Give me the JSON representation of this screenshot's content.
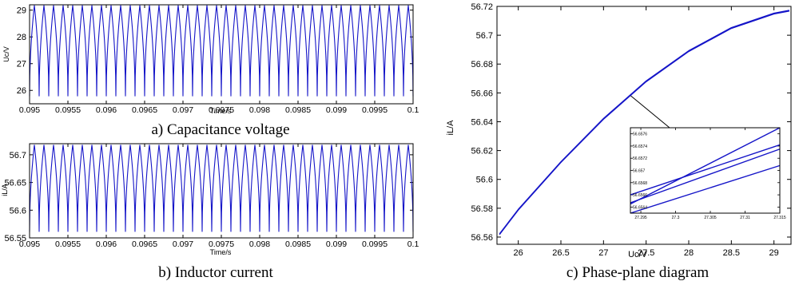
{
  "chart_data": [
    {
      "type": "line",
      "caption": "a) Capacitance voltage",
      "xlabel": "Time/s",
      "ylabel": "Uc/V",
      "xlim": [
        0.095,
        0.1
      ],
      "ylim": [
        25.5,
        29.2
      ],
      "xticks": [
        0.095,
        0.0955,
        0.096,
        0.0965,
        0.097,
        0.0975,
        0.098,
        0.0985,
        0.099,
        0.0995,
        0.1
      ],
      "xtick_labels": [
        "0.095",
        "0.0955",
        "0.096",
        "0.0965",
        "0.097",
        "0.0975",
        "0.098",
        "0.0985",
        "0.099",
        "0.0995",
        "0.1"
      ],
      "yticks": [
        26,
        27,
        28,
        29
      ],
      "ytick_labels": [
        "26",
        "27",
        "28",
        "29"
      ],
      "series": [
        {
          "color": "#1515c8",
          "waveform": "periodic",
          "periods": 40,
          "min": 25.78,
          "max": 29.18,
          "shape": "inverted-cusp"
        }
      ],
      "grid": false
    },
    {
      "type": "line",
      "caption": "b) Inductor current",
      "xlabel": "Time/s",
      "ylabel": "iL/A",
      "xlim": [
        0.095,
        0.1
      ],
      "ylim": [
        56.55,
        56.72
      ],
      "xticks": [
        0.095,
        0.0955,
        0.096,
        0.0965,
        0.097,
        0.0975,
        0.098,
        0.0985,
        0.099,
        0.0995,
        0.1
      ],
      "xtick_labels": [
        "0.095",
        "0.0955",
        "0.096",
        "0.0965",
        "0.097",
        "0.0975",
        "0.098",
        "0.0985",
        "0.099",
        "0.0995",
        "0.1"
      ],
      "yticks": [
        56.55,
        56.6,
        56.65,
        56.7
      ],
      "ytick_labels": [
        "56.55",
        "56.6",
        "56.65",
        "56.7"
      ],
      "series": [
        {
          "color": "#1515c8",
          "waveform": "periodic",
          "periods": 40,
          "min": 56.561,
          "max": 56.718,
          "shape": "inverted-cusp"
        }
      ],
      "grid": false
    },
    {
      "type": "line",
      "caption": "c) Phase-plane diagram",
      "xlabel": "Uc/V",
      "ylabel": "iL/A",
      "xlim": [
        25.75,
        29.2
      ],
      "ylim": [
        56.555,
        56.72
      ],
      "xticks": [
        26,
        26.5,
        27,
        27.5,
        28,
        28.5,
        29
      ],
      "xtick_labels": [
        "26",
        "26.5",
        "27",
        "27.5",
        "28",
        "28.5",
        "29"
      ],
      "yticks": [
        56.56,
        56.58,
        56.6,
        56.62,
        56.64,
        56.66,
        56.68,
        56.7,
        56.72
      ],
      "ytick_labels": [
        "56.56",
        "56.58",
        "56.6",
        "56.62",
        "56.64",
        "56.66",
        "56.68",
        "56.7",
        "56.72"
      ],
      "series": [
        {
          "color": "#1515c8",
          "x": [
            25.78,
            26.0,
            26.5,
            27.0,
            27.5,
            28.0,
            28.5,
            29.0,
            29.18
          ],
          "y": [
            56.562,
            56.579,
            56.612,
            56.642,
            56.668,
            56.689,
            56.705,
            56.715,
            56.717
          ]
        }
      ],
      "annotation_point": {
        "x": 27.32,
        "y": 56.658
      },
      "inset": {
        "xlim": [
          27.2935,
          27.315
        ],
        "ylim": [
          56.6563,
          56.6577
        ],
        "xticks": [
          27.295,
          27.3,
          27.305,
          27.31,
          27.315
        ],
        "xtick_labels": [
          "27.295",
          "27.3",
          "27.305",
          "27.31",
          "27.315"
        ],
        "yticks": [
          56.6564,
          56.6566,
          56.6568,
          56.657,
          56.6572,
          56.6574,
          56.6576
        ],
        "ytick_labels": [
          "56.6564",
          "56.6566",
          "56.6568",
          "56.657",
          "56.6572",
          "56.6574",
          "56.6576"
        ],
        "lines": [
          {
            "x": [
              27.2935,
              27.315
            ],
            "y": [
              56.65645,
              56.65776
            ]
          },
          {
            "x": [
              27.2935,
              27.315
            ],
            "y": [
              56.6566,
              56.65742
            ]
          },
          {
            "x": [
              27.2935,
              27.315
            ],
            "y": [
              56.65647,
              56.65735
            ]
          },
          {
            "x": [
              27.2935,
              27.315
            ],
            "y": [
              56.6561,
              56.65708
            ]
          }
        ]
      }
    }
  ]
}
